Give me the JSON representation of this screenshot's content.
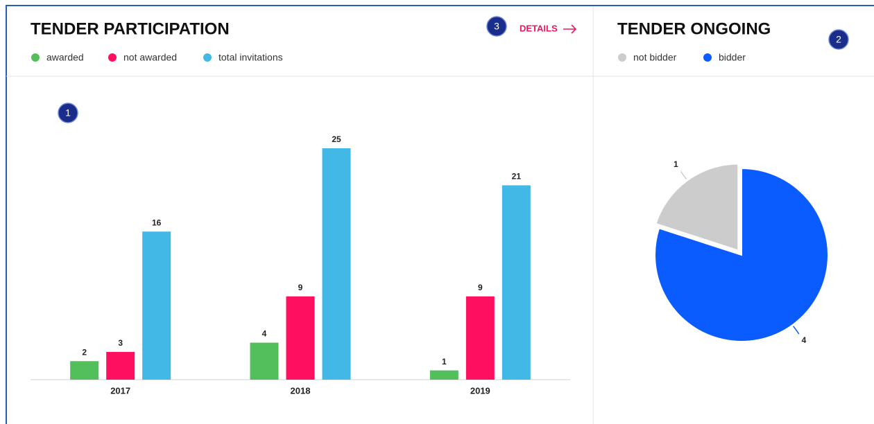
{
  "chart_data": [
    {
      "type": "bar",
      "title": "TENDER PARTICIPATION",
      "categories": [
        "2017",
        "2018",
        "2019"
      ],
      "series": [
        {
          "name": "awarded",
          "color": "#52bf5a",
          "values": [
            2,
            4,
            1
          ]
        },
        {
          "name": "not awarded",
          "color": "#ff0f5f",
          "values": [
            3,
            9,
            9
          ]
        },
        {
          "name": "total invitations",
          "color": "#41b8e6",
          "values": [
            16,
            25,
            21
          ]
        }
      ],
      "ylim": [
        0,
        25
      ]
    },
    {
      "type": "pie",
      "title": "TENDER ONGOING",
      "categories": [
        "not bidder",
        "bidder"
      ],
      "values": [
        1,
        4
      ],
      "colors": [
        "#cccccc",
        "#0a5cff"
      ]
    }
  ],
  "details_link": "DETAILS",
  "markers": [
    "1",
    "2",
    "3"
  ]
}
